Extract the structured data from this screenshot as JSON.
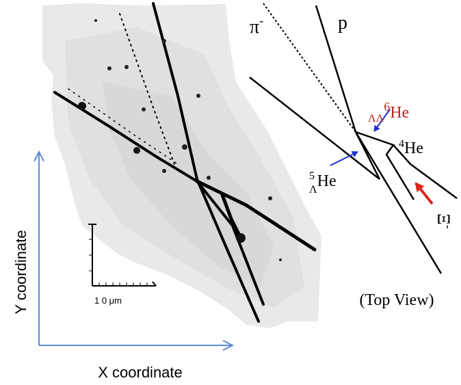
{
  "photo": {
    "scale_bar_label": "1 0 μm"
  },
  "diagram": {
    "pi": {
      "symbol": "π",
      "charge": "-"
    },
    "proton": "p",
    "double_lambda": {
      "sub": "ΛΛ",
      "mass": "6",
      "element": "He"
    },
    "helium4": {
      "mass": "4",
      "element": "He"
    },
    "single_lambda": {
      "mass": "5",
      "sub": "Λ",
      "element": "He"
    },
    "xi": {
      "symbol": "Ξ",
      "charge": "-"
    },
    "caption": "(Top View)"
  },
  "axes": {
    "y_label": "Y coordinate",
    "x_label": "X coordinate"
  }
}
